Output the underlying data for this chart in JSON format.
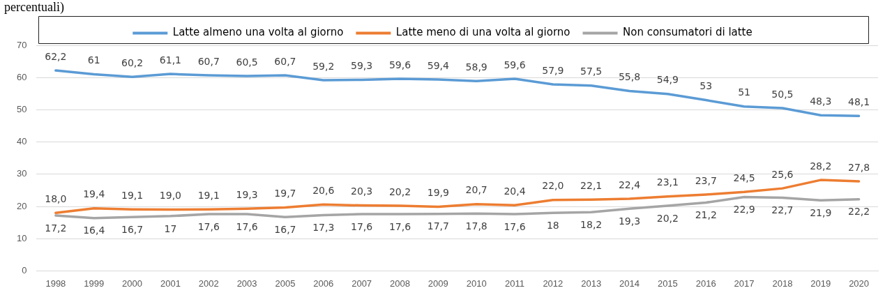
{
  "chart_data": {
    "type": "line",
    "title": "percentuali)",
    "categories": [
      "1998",
      "1999",
      "2000",
      "2001",
      "2002",
      "2003",
      "2005",
      "2006",
      "2007",
      "2008",
      "2009",
      "2010",
      "2011",
      "2012",
      "2013",
      "2014",
      "2015",
      "2016",
      "2017",
      "2018",
      "2019",
      "2020"
    ],
    "series": [
      {
        "name": "Latte almeno una volta al giorno",
        "color": "#5b9bd5",
        "values": [
          62.2,
          61,
          60.2,
          61.1,
          60.7,
          60.5,
          60.7,
          59.2,
          59.3,
          59.6,
          59.4,
          58.9,
          59.6,
          57.9,
          57.5,
          55.8,
          54.9,
          53,
          51,
          50.5,
          48.3,
          48.1
        ],
        "value_labels": [
          "62,2",
          "61",
          "60,2",
          "61,1",
          "60,7",
          "60,5",
          "60,7",
          "59,2",
          "59,3",
          "59,6",
          "59,4",
          "58,9",
          "59,6",
          "57,9",
          "57,5",
          "55,8",
          "54,9",
          "53",
          "51",
          "50,5",
          "48,3",
          "48,1"
        ]
      },
      {
        "name": "Latte meno di una volta al giorno",
        "color": "#ed7d31",
        "values": [
          18.0,
          19.4,
          19.1,
          19.0,
          19.1,
          19.3,
          19.7,
          20.6,
          20.3,
          20.2,
          19.9,
          20.7,
          20.4,
          22.0,
          22.1,
          22.4,
          23.1,
          23.7,
          24.5,
          25.6,
          28.2,
          27.8
        ],
        "value_labels": [
          "18,0",
          "19,4",
          "19,1",
          "19,0",
          "19,1",
          "19,3",
          "19,7",
          "20,6",
          "20,3",
          "20,2",
          "19,9",
          "20,7",
          "20,4",
          "22,0",
          "22,1",
          "22,4",
          "23,1",
          "23,7",
          "24,5",
          "25,6",
          "28,2",
          "27,8"
        ]
      },
      {
        "name": "Non consumatori di latte",
        "color": "#a5a5a5",
        "values": [
          17.2,
          16.4,
          16.7,
          17,
          17.6,
          17.6,
          16.7,
          17.3,
          17.6,
          17.6,
          17.7,
          17.8,
          17.6,
          18,
          18.2,
          19.3,
          20.2,
          21.2,
          22.9,
          22.7,
          21.9,
          22.2
        ],
        "value_labels": [
          "17,2",
          "16,4",
          "16,7",
          "17",
          "17,6",
          "17,6",
          "16,7",
          "17,3",
          "17,6",
          "17,6",
          "17,7",
          "17,8",
          "17,6",
          "18",
          "18,2",
          "19,3",
          "20,2",
          "21,2",
          "22,9",
          "22,7",
          "21,9",
          "22,2"
        ]
      }
    ],
    "ylim": [
      0,
      70
    ],
    "yticks": [
      0,
      10,
      20,
      30,
      40,
      50,
      60,
      70
    ],
    "grid": "y",
    "legend": "top",
    "marker": "none",
    "line_style": "solid"
  }
}
